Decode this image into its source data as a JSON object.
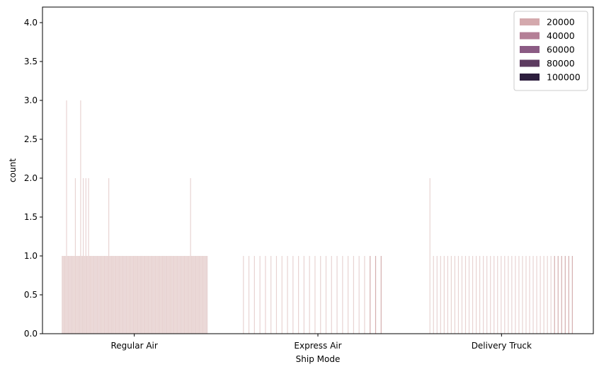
{
  "chart_data": {
    "type": "bar",
    "xlabel": "Ship Mode",
    "ylabel": "count",
    "categories": [
      "Regular Air",
      "Express Air",
      "Delivery Truck"
    ],
    "ylim": [
      0,
      4.2
    ],
    "yticks": [
      "0.0",
      "0.5",
      "1.0",
      "1.5",
      "2.0",
      "2.5",
      "3.0",
      "3.5",
      "4.0"
    ],
    "grid": false,
    "legend": {
      "position": "top-right",
      "entries": [
        {
          "label": "20000",
          "color": "#d4a9ad"
        },
        {
          "label": "40000",
          "color": "#b47f96"
        },
        {
          "label": "60000",
          "color": "#8b5b84"
        },
        {
          "label": "80000",
          "color": "#5d3b60"
        },
        {
          "label": "100000",
          "color": "#2d1e3e"
        }
      ]
    },
    "bar_color": "#e8d3d2",
    "bar_color_dark": "#d4aeae",
    "groups": [
      {
        "category": "Regular Air",
        "counts": [
          1,
          1,
          1,
          1,
          1,
          3,
          1,
          1,
          1,
          1,
          1,
          1,
          1,
          1,
          1,
          2,
          1,
          1,
          1,
          1,
          1,
          3,
          1,
          1,
          2,
          1,
          1,
          2,
          1,
          1,
          2,
          1,
          1,
          1,
          1,
          1,
          1,
          1,
          1,
          1,
          1,
          1,
          1,
          1,
          1,
          1,
          1,
          1,
          1,
          1,
          1,
          1,
          1,
          2,
          1,
          1,
          1,
          1,
          1,
          1,
          1,
          1,
          1,
          1,
          1,
          1,
          1,
          1,
          1,
          1,
          1,
          1,
          1,
          1,
          1,
          1,
          1,
          1,
          1,
          1,
          1,
          1,
          1,
          1,
          1,
          1,
          1,
          1,
          1,
          1,
          1,
          1,
          1,
          1,
          1,
          1,
          1,
          1,
          1,
          1,
          1,
          1,
          1,
          1,
          1,
          1,
          1,
          1,
          1,
          1,
          1,
          1,
          1,
          1,
          1,
          1,
          1,
          1,
          1,
          1,
          1,
          1,
          1,
          1,
          1,
          1,
          1,
          1,
          1,
          1,
          1,
          1,
          1,
          1,
          1,
          1,
          1,
          1,
          1,
          1,
          1,
          1,
          1,
          1,
          1,
          1,
          2,
          1,
          1,
          1,
          1,
          1,
          1,
          1,
          1,
          1,
          1,
          1,
          1,
          1,
          1,
          1,
          1,
          1,
          1,
          1
        ]
      },
      {
        "category": "Express Air",
        "counts": [
          1,
          1,
          1,
          1,
          1,
          1,
          1,
          1,
          1,
          1,
          1,
          1,
          1,
          1,
          1,
          1,
          1,
          1,
          1,
          1,
          1,
          1,
          1,
          1,
          1,
          1
        ]
      },
      {
        "category": "Delivery Truck",
        "counts": [
          2,
          1,
          1,
          1,
          1,
          1,
          1,
          1,
          1,
          1,
          1,
          1,
          1,
          1,
          1,
          1,
          1,
          1,
          1,
          1,
          1,
          1,
          1,
          1,
          1,
          1,
          1,
          1,
          1,
          1,
          1,
          1,
          1,
          1,
          1,
          1,
          1,
          1,
          1,
          1,
          1
        ]
      }
    ]
  }
}
